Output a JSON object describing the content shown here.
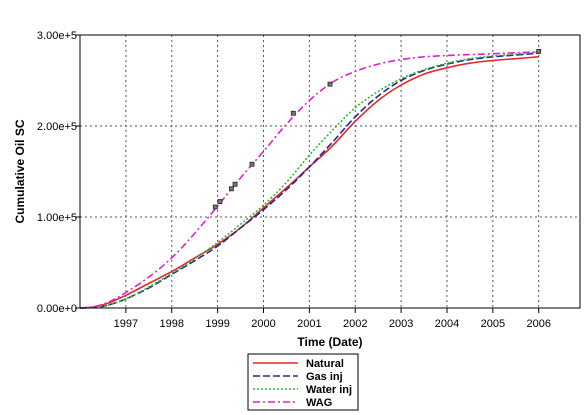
{
  "chart_data": {
    "type": "line",
    "xlabel": "Time (Date)",
    "ylabel": "Cumulative Oil SC",
    "xlim": [
      1996.0,
      2006.9
    ],
    "ylim": [
      0,
      300000
    ],
    "x_ticks": [
      1997,
      1998,
      1999,
      2000,
      2001,
      2002,
      2003,
      2004,
      2005,
      2006
    ],
    "x_tick_labels": [
      "1997",
      "1998",
      "1999",
      "2000",
      "2001",
      "2002",
      "2003",
      "2004",
      "2005",
      "2006"
    ],
    "y_ticks": [
      0,
      100000,
      200000,
      300000
    ],
    "y_tick_labels": [
      "0.00e+0",
      "1.00e+5",
      "2.00e+5",
      "3.00e+5"
    ],
    "grid": true,
    "legend_position": "bottom-center",
    "series": [
      {
        "name": "Natural",
        "color": "#e8262a",
        "dash": "solid",
        "x": [
          1996.0,
          1996.3,
          1996.6,
          1997.0,
          1997.5,
          1998.0,
          1998.5,
          1999.0,
          1999.5,
          2000.0,
          2000.5,
          2001.0,
          2001.5,
          2002.0,
          2002.5,
          2003.0,
          2003.5,
          2004.0,
          2004.5,
          2005.0,
          2005.5,
          2006.0
        ],
        "y": [
          0,
          1000,
          5000,
          14000,
          27000,
          40000,
          55000,
          70000,
          88000,
          110000,
          132000,
          155000,
          178000,
          205000,
          228000,
          245000,
          257000,
          264000,
          269000,
          272000,
          274000,
          276000
        ]
      },
      {
        "name": "Gas inj",
        "color": "#1f2a8c",
        "dash": "dashed",
        "x": [
          1996.0,
          1996.3,
          1996.6,
          1997.0,
          1997.5,
          1998.0,
          1998.5,
          1999.0,
          1999.5,
          2000.0,
          2000.5,
          2001.0,
          2001.5,
          2002.0,
          2002.5,
          2003.0,
          2003.5,
          2004.0,
          2004.5,
          2005.0,
          2005.5,
          2006.0
        ],
        "y": [
          0,
          600,
          3000,
          10000,
          22000,
          37000,
          52000,
          68000,
          88000,
          108000,
          130000,
          155000,
          182000,
          210000,
          233000,
          250000,
          261000,
          268000,
          273000,
          276000,
          278000,
          280000
        ]
      },
      {
        "name": "Water inj",
        "color": "#2db82d",
        "dash": "dotted",
        "x": [
          1996.0,
          1996.3,
          1996.6,
          1997.0,
          1997.5,
          1998.0,
          1998.5,
          1999.0,
          1999.5,
          2000.0,
          2000.5,
          2001.0,
          2001.5,
          2002.0,
          2002.5,
          2003.0,
          2003.5,
          2004.0,
          2004.5,
          2005.0,
          2005.5,
          2006.0
        ],
        "y": [
          0,
          600,
          3000,
          10000,
          23000,
          38000,
          54000,
          72000,
          92000,
          113000,
          138000,
          168000,
          195000,
          220000,
          238000,
          252000,
          262000,
          269000,
          274000,
          277000,
          279000,
          281000
        ]
      },
      {
        "name": "WAG",
        "color": "#e020d0",
        "dash": "dashdot",
        "x": [
          1996.0,
          1996.3,
          1996.6,
          1997.0,
          1997.5,
          1998.0,
          1998.5,
          1999.0,
          1999.5,
          2000.0,
          2000.5,
          2001.0,
          2001.5,
          2002.0,
          2002.5,
          2003.0,
          2003.5,
          2004.0,
          2004.5,
          2005.0,
          2005.5,
          2006.0
        ],
        "y": [
          0,
          1500,
          6000,
          17000,
          34000,
          55000,
          82000,
          112000,
          143000,
          172000,
          202000,
          228000,
          248000,
          260000,
          268000,
          273000,
          276000,
          277500,
          278500,
          279500,
          280500,
          281500
        ]
      }
    ],
    "markers": {
      "x": [
        1998.95,
        1999.05,
        1999.3,
        1999.38,
        1999.75,
        2000.65,
        2001.45,
        2006.0
      ],
      "y": [
        111000,
        117000,
        131000,
        136000,
        158000,
        214000,
        246000,
        282000
      ]
    }
  }
}
